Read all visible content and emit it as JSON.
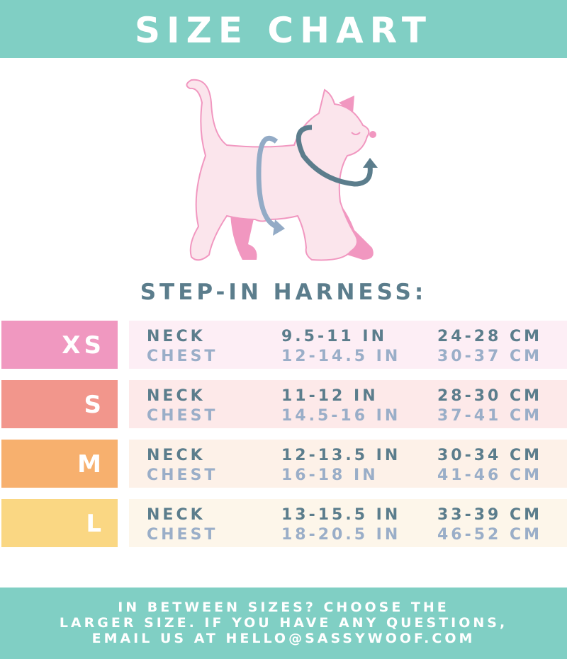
{
  "header": {
    "title": "SIZE CHART"
  },
  "subtitle": "STEP-IN HARNESS:",
  "rows": [
    {
      "size": "XS",
      "color": "#f098c0",
      "bg": "#fdeef5",
      "neck_label": "NECK",
      "chest_label": "CHEST",
      "neck_in": "9.5-11 IN",
      "neck_cm": "24-28 CM",
      "chest_in": "12-14.5 IN",
      "chest_cm": "30-37 CM"
    },
    {
      "size": "S",
      "color": "#f2968c",
      "bg": "#fde9e9",
      "neck_label": "NECK",
      "chest_label": "CHEST",
      "neck_in": "11-12 IN",
      "neck_cm": "28-30 CM",
      "chest_in": "14.5-16 IN",
      "chest_cm": "37-41 CM"
    },
    {
      "size": "M",
      "color": "#f7b06e",
      "bg": "#fdf1e8",
      "neck_label": "NECK",
      "chest_label": "CHEST",
      "neck_in": "12-13.5 IN",
      "neck_cm": "30-34 CM",
      "chest_in": "16-18 IN",
      "chest_cm": "41-46 CM"
    },
    {
      "size": "L",
      "color": "#fad783",
      "bg": "#fdf6ea",
      "neck_label": "NECK",
      "chest_label": "CHEST",
      "neck_in": "13-15.5 IN",
      "neck_cm": "33-39 CM",
      "chest_in": "18-20.5 IN",
      "chest_cm": "46-52 CM"
    }
  ],
  "footer": {
    "lines": [
      "IN BETWEEN SIZES? CHOOSE THE",
      "LARGER SIZE. IF YOU HAVE ANY QUESTIONS,",
      "EMAIL US AT HELLO@SASSYWOOF.COM"
    ]
  },
  "colors": {
    "teal": "#80cfc4",
    "neck_text": "#5b7d8c",
    "chest_text": "#9aaec8"
  }
}
